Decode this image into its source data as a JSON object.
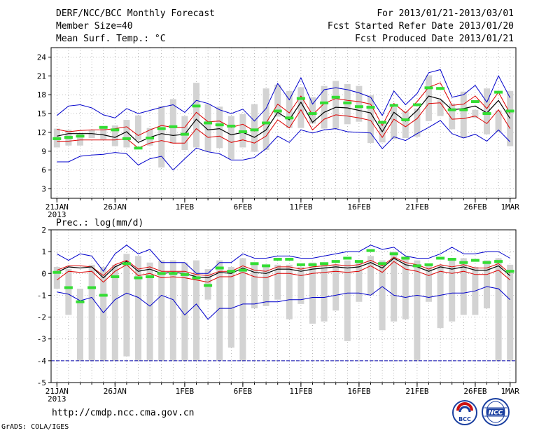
{
  "header": {
    "title": "DERF/NCC/BCC Monthly Forecast",
    "member_size": "Member Size=40",
    "variable": "Mean Surf. Temp.: °C",
    "period": "For 2013/01/21-2013/03/01",
    "fcst_started": "Fcst Started Refer Date 2013/01/20",
    "fcst_produced": "Fcst Produced Date 2013/01/21"
  },
  "footer": {
    "url": "http://cmdp.ncc.cma.gov.cn",
    "grads_credit": "GrADS: COLA/IGES",
    "logo_bcc": "BCC",
    "logo_ncc": "NCC"
  },
  "colors": {
    "ensemble_mean": "#000000",
    "std_band": "#dd0000",
    "envelope": "#0000cc",
    "bar": "#d3d3d3",
    "obs_marker": "#33dd33",
    "grid": "#999999"
  },
  "chart_data": [
    {
      "type": "line",
      "title": "Mean Surf. Temp.: °C",
      "x_labels": [
        {
          "day": 0,
          "label": "21JAN",
          "sub": "2013"
        },
        {
          "day": 5,
          "label": "26JAN"
        },
        {
          "day": 11,
          "label": "1FEB"
        },
        {
          "day": 16,
          "label": "6FEB"
        },
        {
          "day": 21,
          "label": "11FEB"
        },
        {
          "day": 26,
          "label": "16FEB"
        },
        {
          "day": 31,
          "label": "21FEB"
        },
        {
          "day": 36,
          "label": "26FEB"
        },
        {
          "day": 39,
          "label": "1MAR"
        }
      ],
      "xlim": [
        -0.5,
        39.5
      ],
      "ylim": [
        1.5,
        25.5
      ],
      "yticks": [
        3,
        6,
        9,
        12,
        15,
        18,
        21,
        24
      ],
      "series": {
        "mean": [
          11.4,
          11.8,
          11.8,
          11.8,
          11.6,
          11.2,
          12.1,
          10.4,
          11.2,
          11.8,
          11.5,
          11.7,
          14.1,
          12.4,
          12.6,
          11.6,
          12.0,
          11.2,
          12.4,
          15.2,
          14.0,
          16.8,
          13.6,
          15.2,
          16.0,
          15.9,
          15.5,
          15.1,
          12.1,
          15.2,
          13.8,
          15.5,
          17.8,
          17.3,
          15.6,
          15.8,
          16.2,
          15.1,
          17.1,
          14.2
        ],
        "upper": [
          12.5,
          12.1,
          12.3,
          12.4,
          12.4,
          12.6,
          12.9,
          11.5,
          12.4,
          13.1,
          12.8,
          12.8,
          15.2,
          13.7,
          13.8,
          12.8,
          13.3,
          12.2,
          13.5,
          16.5,
          15.1,
          17.8,
          14.8,
          16.6,
          17.4,
          17.1,
          16.9,
          16.5,
          13.1,
          16.6,
          15.1,
          16.9,
          19.2,
          19.9,
          16.3,
          16.5,
          17.8,
          15.8,
          18.4,
          15.0
        ],
        "lower": [
          10.6,
          10.6,
          10.8,
          10.8,
          10.8,
          10.8,
          11.0,
          9.5,
          10.3,
          10.7,
          10.3,
          10.3,
          12.6,
          11.2,
          11.4,
          10.4,
          10.8,
          10.3,
          11.4,
          14.0,
          12.7,
          15.6,
          12.4,
          14.1,
          14.8,
          14.6,
          14.3,
          13.9,
          11.2,
          14.1,
          12.9,
          14.2,
          16.6,
          16.7,
          14.1,
          14.2,
          14.6,
          13.4,
          15.6,
          12.6
        ],
        "max": [
          14.7,
          16.2,
          16.4,
          15.9,
          14.8,
          14.3,
          15.8,
          15.0,
          15.5,
          16.0,
          16.4,
          15.2,
          17.1,
          16.6,
          15.6,
          15.0,
          15.7,
          13.8,
          15.8,
          19.8,
          17.2,
          20.7,
          16.5,
          18.8,
          19.1,
          18.8,
          18.3,
          17.6,
          14.7,
          18.6,
          16.4,
          18.2,
          21.5,
          22.0,
          17.6,
          18.0,
          19.5,
          16.8,
          21.0,
          17.5
        ],
        "min": [
          7.3,
          7.3,
          8.2,
          8.4,
          8.5,
          8.8,
          8.6,
          6.8,
          7.8,
          8.2,
          6.0,
          7.8,
          9.5,
          8.9,
          8.6,
          7.6,
          7.6,
          8.0,
          9.4,
          11.4,
          10.4,
          12.4,
          11.9,
          12.4,
          12.6,
          12.1,
          12.0,
          11.9,
          9.4,
          11.3,
          10.7,
          11.8,
          12.8,
          13.9,
          11.8,
          11.1,
          11.7,
          10.6,
          12.4,
          10.5
        ],
        "bar_top": [
          12.6,
          12.4,
          11.9,
          12.4,
          13.0,
          13.1,
          14.0,
          14.7,
          12.7,
          16.2,
          17.3,
          14.6,
          19.9,
          16.5,
          16.1,
          14.6,
          14.9,
          16.5,
          19.0,
          19.6,
          18.6,
          19.2,
          17.6,
          19.4,
          20.2,
          19.7,
          19.4,
          17.9,
          13.3,
          16.0,
          15.4,
          15.8,
          21.1,
          17.1,
          16.6,
          18.5,
          15.6,
          19.0,
          15.5,
          18.6
        ],
        "bar_bottom": [
          9.6,
          9.9,
          9.9,
          11.1,
          10.9,
          9.8,
          9.6,
          10.8,
          9.9,
          6.4,
          10.2,
          9.2,
          9.6,
          8.9,
          9.5,
          7.7,
          9.6,
          8.9,
          9.2,
          14.5,
          12.7,
          12.7,
          13.4,
          12.6,
          12.6,
          13.3,
          13.7,
          10.3,
          10.4,
          10.9,
          11.1,
          11.3,
          13.8,
          14.6,
          12.5,
          11.1,
          14.3,
          11.7,
          12.1,
          9.8
        ],
        "obs": [
          11.0,
          11.2,
          11.4,
          null,
          12.8,
          12.4,
          11.0,
          9.5,
          11.1,
          12.6,
          12.9,
          11.7,
          16.2,
          13.5,
          13.2,
          13.0,
          12.1,
          12.4,
          13.5,
          15.4,
          14.3,
          17.4,
          15.0,
          16.7,
          17.6,
          16.7,
          16.1,
          16.0,
          13.6,
          16.3,
          14.0,
          16.4,
          19.1,
          19.0,
          15.6,
          15.6,
          16.9,
          15.0,
          18.4,
          15.4
        ]
      }
    },
    {
      "type": "line",
      "title": "Prec.: log(mm/d)",
      "x_labels": [
        {
          "day": 0,
          "label": "21JAN",
          "sub": "2013"
        },
        {
          "day": 5,
          "label": "26JAN"
        },
        {
          "day": 11,
          "label": "1FEB"
        },
        {
          "day": 16,
          "label": "6FEB"
        },
        {
          "day": 21,
          "label": "11FEB"
        },
        {
          "day": 26,
          "label": "16FEB"
        },
        {
          "day": 31,
          "label": "21FEB"
        },
        {
          "day": 36,
          "label": "26FEB"
        },
        {
          "day": 39,
          "label": "1MAR"
        }
      ],
      "xlim": [
        -0.5,
        39.5
      ],
      "ylim": [
        -5,
        2
      ],
      "yticks": [
        -5,
        -4,
        -3,
        -2,
        -1,
        0,
        1,
        2
      ],
      "series": {
        "mean": [
          0.05,
          0.3,
          0.25,
          0.3,
          -0.2,
          0.3,
          0.55,
          0.1,
          0.2,
          0.0,
          0.05,
          0.0,
          -0.15,
          -0.2,
          0.05,
          0.0,
          0.25,
          0.05,
          0.0,
          0.2,
          0.2,
          0.1,
          0.2,
          0.25,
          0.3,
          0.25,
          0.3,
          0.5,
          0.25,
          0.7,
          0.4,
          0.3,
          0.1,
          0.3,
          0.2,
          0.3,
          0.15,
          0.15,
          0.35,
          -0.1
        ],
        "upper": [
          0.15,
          0.35,
          0.35,
          0.3,
          -0.1,
          0.4,
          0.6,
          0.2,
          0.3,
          0.1,
          0.1,
          0.1,
          -0.05,
          -0.1,
          0.1,
          0.1,
          0.35,
          0.15,
          0.1,
          0.3,
          0.3,
          0.2,
          0.3,
          0.35,
          0.4,
          0.35,
          0.4,
          0.6,
          0.35,
          0.75,
          0.5,
          0.4,
          0.2,
          0.4,
          0.3,
          0.4,
          0.25,
          0.25,
          0.45,
          0.0
        ],
        "lower": [
          -0.3,
          0.1,
          0.05,
          0.1,
          -0.4,
          0.1,
          0.4,
          -0.1,
          0.0,
          -0.2,
          -0.15,
          -0.2,
          -0.3,
          -0.4,
          -0.15,
          -0.15,
          0.05,
          -0.15,
          -0.2,
          0.0,
          0.0,
          -0.1,
          0.0,
          0.05,
          0.1,
          0.05,
          0.1,
          0.35,
          0.05,
          0.55,
          0.2,
          0.1,
          -0.1,
          0.1,
          0.0,
          0.1,
          -0.05,
          -0.05,
          0.15,
          -0.3
        ],
        "max": [
          0.9,
          0.6,
          0.9,
          0.8,
          0.1,
          0.9,
          1.3,
          0.9,
          1.1,
          0.5,
          0.5,
          0.5,
          0.0,
          0.0,
          0.5,
          0.5,
          0.9,
          0.7,
          0.7,
          0.8,
          0.8,
          0.7,
          0.7,
          0.8,
          0.9,
          1.0,
          1.0,
          1.3,
          1.1,
          1.2,
          0.8,
          0.7,
          0.7,
          0.9,
          1.2,
          0.9,
          0.9,
          1.0,
          1.0,
          0.7
        ],
        "min": [
          -0.85,
          -0.95,
          -1.25,
          -1.1,
          -1.8,
          -1.2,
          -0.9,
          -1.1,
          -1.5,
          -1.0,
          -1.2,
          -1.9,
          -1.4,
          -2.1,
          -1.6,
          -1.6,
          -1.4,
          -1.4,
          -1.3,
          -1.3,
          -1.2,
          -1.2,
          -1.1,
          -1.1,
          -1.0,
          -0.9,
          -0.9,
          -1.0,
          -0.6,
          -1.0,
          -1.1,
          -1.0,
          -1.1,
          -1.0,
          -0.9,
          -0.9,
          -0.8,
          -0.6,
          -0.7,
          -1.2
        ],
        "bar_top": [
          0.3,
          0.2,
          -0.7,
          0.4,
          0.3,
          0.4,
          0.9,
          0.8,
          0.5,
          0.6,
          0.6,
          0.5,
          0.6,
          0.2,
          0.6,
          0.3,
          0.7,
          0.5,
          0.4,
          0.4,
          0.4,
          0.3,
          0.5,
          0.5,
          0.4,
          0.6,
          0.6,
          0.8,
          0.6,
          1.0,
          0.7,
          0.6,
          0.4,
          0.4,
          0.7,
          0.7,
          0.3,
          0.6,
          0.7,
          0.4
        ],
        "bar_bottom": [
          -0.7,
          -1.9,
          -4.0,
          -4.0,
          -4.0,
          -4.0,
          -3.8,
          -4.0,
          -4.0,
          -4.0,
          -4.0,
          -4.0,
          -4.0,
          -1.2,
          -4.0,
          -3.4,
          -4.0,
          -1.6,
          -1.5,
          -1.2,
          -2.1,
          -1.4,
          -2.3,
          -2.2,
          -1.7,
          -3.1,
          -1.3,
          -1.0,
          -2.6,
          -2.2,
          -2.1,
          -4.0,
          -1.3,
          -2.5,
          -2.2,
          -1.9,
          -1.9,
          -1.6,
          -4.0,
          -4.0
        ],
        "obs": [
          0.05,
          -0.65,
          -1.3,
          -0.65,
          -1.0,
          -0.15,
          0.45,
          -0.2,
          -0.15,
          0.0,
          0.0,
          -0.05,
          -0.2,
          -0.55,
          0.25,
          0.1,
          0.15,
          0.45,
          0.35,
          0.65,
          0.65,
          0.4,
          0.4,
          0.45,
          0.55,
          0.7,
          0.55,
          1.05,
          0.45,
          0.9,
          0.7,
          0.35,
          0.4,
          0.7,
          0.65,
          0.5,
          0.6,
          0.5,
          0.55,
          0.1
        ],
        "floor": -4
      }
    }
  ]
}
